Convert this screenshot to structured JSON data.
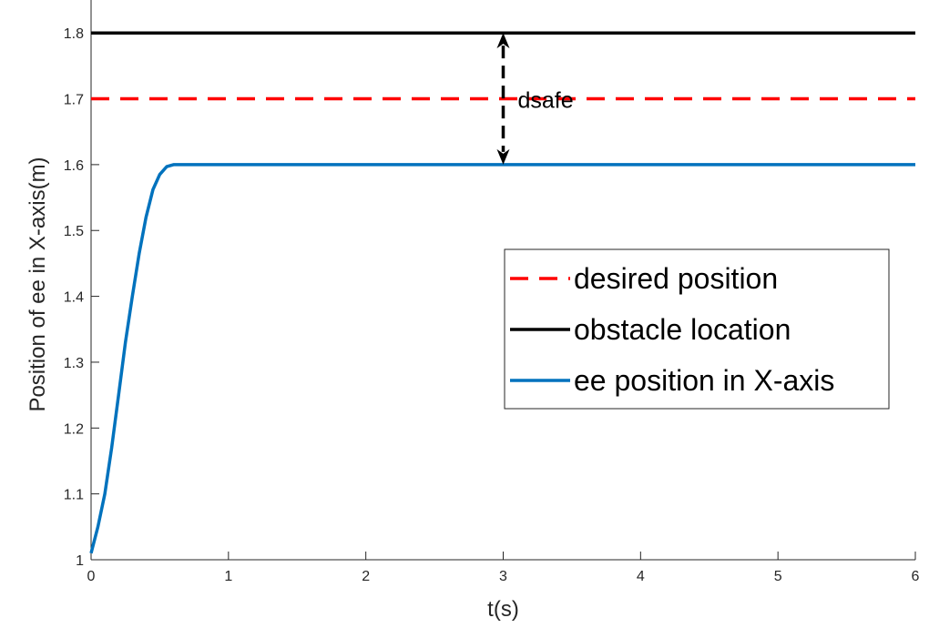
{
  "chart_data": {
    "type": "line",
    "title": "",
    "xlabel": "t(s)",
    "ylabel": "Position of ee in X-axis(m)",
    "xlim": [
      0,
      6
    ],
    "ylim": [
      1,
      1.85
    ],
    "xticks": [
      0,
      1,
      2,
      3,
      4,
      5,
      6
    ],
    "yticks": [
      1,
      1.1,
      1.2,
      1.3,
      1.4,
      1.5,
      1.6,
      1.7,
      1.8
    ],
    "grid": false,
    "legend_position": "center-right",
    "series": [
      {
        "name": "desired position",
        "color": "#ff0000",
        "style": "dashed",
        "x": [
          0,
          6
        ],
        "y": [
          1.7,
          1.7
        ]
      },
      {
        "name": "obstacle location",
        "color": "#000000",
        "style": "solid",
        "x": [
          0,
          6
        ],
        "y": [
          1.8,
          1.8
        ]
      },
      {
        "name": "ee position in X-axis",
        "color": "#0072bd",
        "style": "solid",
        "x": [
          0,
          0.05,
          0.1,
          0.15,
          0.2,
          0.25,
          0.3,
          0.35,
          0.4,
          0.45,
          0.5,
          0.55,
          0.6,
          0.65,
          1,
          2,
          3,
          4,
          5,
          6
        ],
        "y": [
          1.01,
          1.05,
          1.1,
          1.17,
          1.25,
          1.33,
          1.4,
          1.465,
          1.52,
          1.562,
          1.585,
          1.597,
          1.6,
          1.6,
          1.6,
          1.6,
          1.6,
          1.6,
          1.6,
          1.6
        ]
      }
    ],
    "annotations": [
      {
        "text": "dsafe",
        "type": "double-arrow",
        "x": 3,
        "y_from": 1.6,
        "y_to": 1.8
      }
    ]
  }
}
